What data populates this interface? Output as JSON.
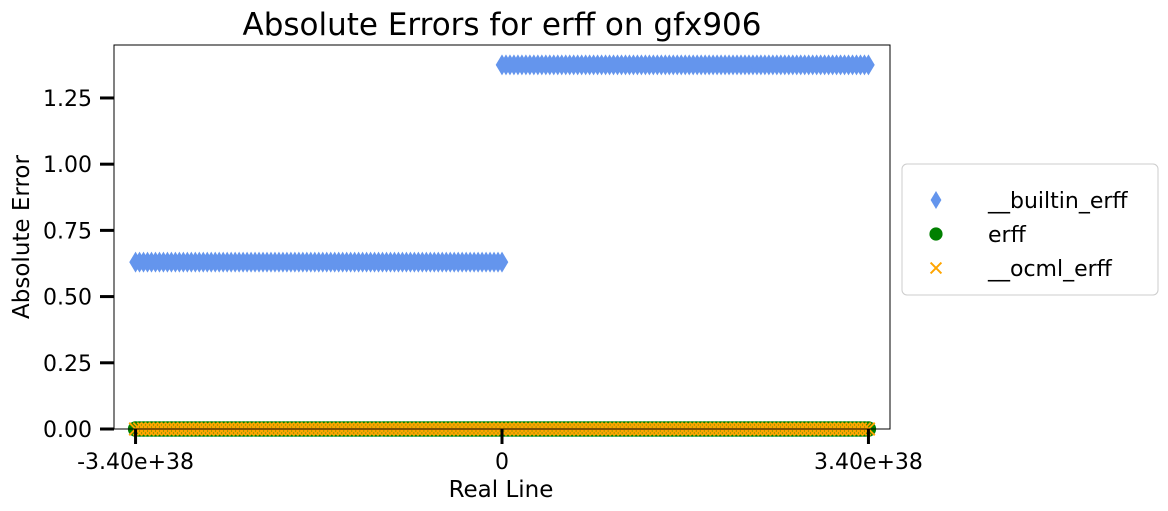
{
  "chart_data": {
    "type": "scatter",
    "title": "Absolute Errors for erff on gfx906",
    "xlabel": "Real Line",
    "ylabel": "Absolute Error",
    "xlim": [
      -3.6e+38,
      3.6e+38
    ],
    "ylim": [
      0,
      1.45
    ],
    "x_ticks": [
      {
        "value": -3.4e+38,
        "label": "-3.40e+38"
      },
      {
        "value": 0,
        "label": "0"
      },
      {
        "value": 3.4e+38,
        "label": "3.40e+38"
      }
    ],
    "y_ticks": [
      {
        "value": 0,
        "label": "0.00"
      },
      {
        "value": 0.25,
        "label": "0.25"
      },
      {
        "value": 0.5,
        "label": "0.50"
      },
      {
        "value": 0.75,
        "label": "0.75"
      },
      {
        "value": 1.0,
        "label": "1.00"
      },
      {
        "value": 1.25,
        "label": "1.25"
      }
    ],
    "grid": false,
    "legend_position": "outside-right",
    "series": [
      {
        "name": "__builtin_erff",
        "marker": "diamond",
        "color": "#6495ed",
        "segments": [
          {
            "x_start": -3.4e+38,
            "x_end": 0,
            "y": 0.63
          },
          {
            "x_start": 0,
            "x_end": 3.4e+38,
            "y": 1.375
          }
        ]
      },
      {
        "name": "erff",
        "marker": "circle",
        "color": "#008000",
        "segments": [
          {
            "x_start": -3.4e+38,
            "x_end": 3.4e+38,
            "y": 0
          }
        ]
      },
      {
        "name": "__ocml_erff",
        "marker": "x",
        "color": "#ffa500",
        "segments": [
          {
            "x_start": -3.4e+38,
            "x_end": 3.4e+38,
            "y": 0
          }
        ]
      }
    ]
  }
}
